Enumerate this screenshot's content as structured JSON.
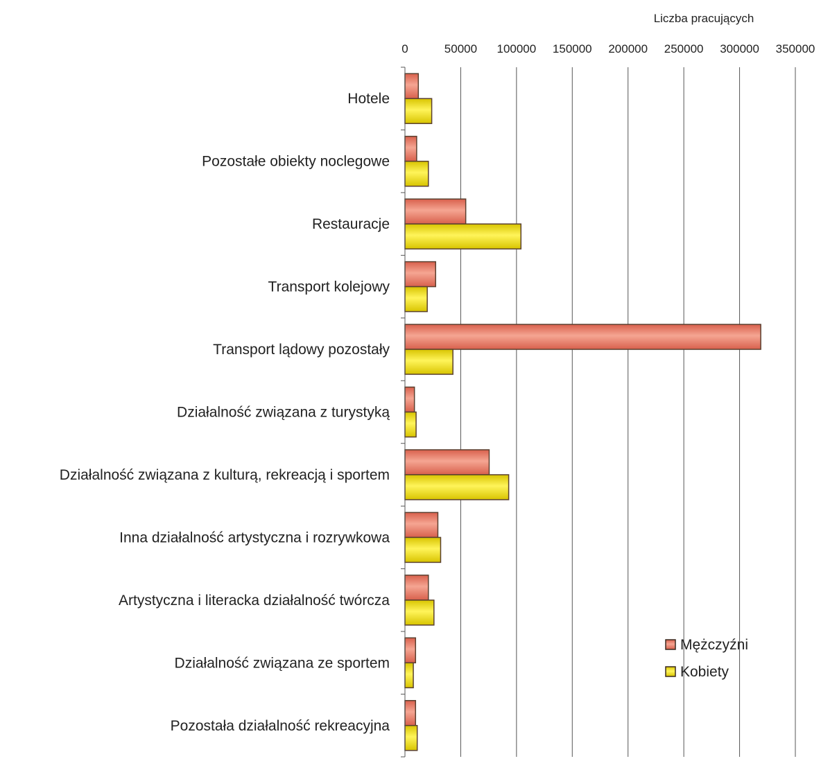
{
  "chart_data": {
    "type": "bar",
    "orientation": "horizontal",
    "xlabel": "Liczba pracujących",
    "xlim": [
      0,
      350000
    ],
    "xticks": [
      0,
      50000,
      100000,
      150000,
      200000,
      250000,
      300000,
      350000
    ],
    "tick_labels": [
      "0",
      "50000",
      "100000",
      "150000",
      "200000",
      "250000",
      "300000",
      "350000"
    ],
    "grid": true,
    "legend_position": "bottom-right",
    "categories": [
      "Hotele",
      "Pozostałe obiekty noclegowe",
      "Restauracje",
      "Transport kolejowy",
      "Transport lądowy pozostały",
      "Działalność związana z turystyką",
      "Działalność związana z kulturą, rekreacją i sportem",
      "Inna działalność artystyczna i rozrywkowa",
      "Artystyczna i literacka działalność twórcza",
      "Działalność związana ze sportem",
      "Pozostała działalność rekreacyjna"
    ],
    "series": [
      {
        "name": "Mężczyźni",
        "color": "#e8806a",
        "values": [
          12000,
          10500,
          54500,
          27500,
          319000,
          8500,
          75500,
          29500,
          21000,
          9500,
          9500
        ]
      },
      {
        "name": "Kobiety",
        "color": "#f2e000",
        "values": [
          24000,
          21000,
          104000,
          20000,
          43000,
          10000,
          93000,
          32000,
          26000,
          7500,
          11000
        ]
      }
    ]
  }
}
